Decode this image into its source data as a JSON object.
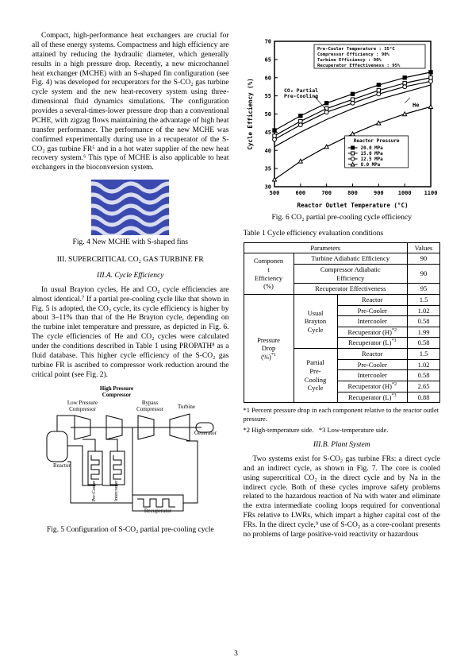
{
  "page_number": "3",
  "left_col": {
    "para1": "Compact, high-performance heat exchangers are crucial for all of these energy systems. Compactness and high efficiency are attained by reducing the hydraulic diameter, which generally results in a high pressure drop. Recently, a new microchannel heat exchanger (MCHE) with an S-shaped fin configuration (see Fig. 4) was developed for recuperators for the S-CO₂ gas turbine cycle system and the new heat-recovery system using three-dimensional fluid dynamics simulations. The configuration provides a several-times-lower pressure drop than a conventional PCHE, with zigzag flows maintaining the advantage of high heat transfer performance. The performance of the new MCHE was confirmed experimentally during use in a recuperator of the S-CO₂ gas turbine FR⁵ and in a hot water supplier of the new heat recovery system.⁶ This type of MCHE is also applicable to heat exchangers in the bioconversion system.",
    "fig4_caption": "Fig. 4 New MCHE with S-shaped fins",
    "sec3_head": "III. SUPERCRITICAL CO₂ GAS TURBINE FR",
    "sec3a_head": "III.A. Cycle Efficiency",
    "para2": "In usual Brayton cycles, He and CO₂ cycle efficiencies are almost identical.⁷ If a partial pre-cooling cycle like that shown in Fig. 5 is adopted, the CO₂ cycle, its cycle efficiency is higher by about 3–11% than that of the He Brayton cycle, depending on the turbine inlet temperature and pressure, as depicted in Fig. 6. The cycle efficiencies of He and CO₂ cycles were calculated under the conditions described in Table 1 using PROPATH⁸ as a fluid database. This higher cycle efficiency of the S-CO₂ gas turbine FR is ascribed to compressor work reduction around the critical point (see Fig. 2).",
    "fig5_caption": "Fig. 5 Configuration of S-CO₂ partial pre-cooling cycle",
    "fig5_labels": {
      "hpc": "High Pressure\nCompressor",
      "lpc": "Low Pressure\nCompressor",
      "bpc": "Bypass\nCompressor",
      "turbine": "Turbine",
      "generator": "Generator",
      "reactor": "Reactor",
      "precooler": "Pre-Cooler",
      "intercooler": "Intercooler",
      "recuperator": "Recuperator"
    }
  },
  "right_col": {
    "fig6_caption": "Fig. 6 CO₂ partial pre-cooling cycle efficiency",
    "table_caption": "Table 1 Cycle efficiency evaluation conditions",
    "footnote1": "*1 Percent pressure drop in each component relative to the reactor outlet pressure.",
    "footnote2_a": "*2 High-temperature side.",
    "footnote2_b": "*3 Low-temperature side.",
    "sec3b_head": "III.B. Plant System",
    "para3": "Two systems exist for S-CO₂ gas turbine FRs: a direct cycle and an indirect cycle, as shown in Fig. 7. The core is cooled using supercritical CO₂ in the direct cycle and by Na in the indirect cycle. Both of these cycles improve safety problems related to the hazardous reaction of Na with water and eliminate the extra intermediate cooling loops required for conventional FRs relative to LWRs, which impart a higher capital cost of the FRs. In the direct cycle,⁹ use of S-CO₂ as a core-coolant presents no problems of large positive-void reactivity or hazardous",
    "chart": {
      "type": "line",
      "xlim": [
        500,
        1100
      ],
      "ylim": [
        30,
        70
      ],
      "xticks": [
        500,
        600,
        700,
        800,
        900,
        1000,
        1100
      ],
      "yticks": [
        30,
        35,
        40,
        45,
        50,
        55,
        60,
        65,
        70
      ],
      "xlabel": "Reactor Outlet Temperature (°C)",
      "ylabel": "Cycle Efficiency (%)",
      "legend1": [
        "Pre-Cooler Temperature : 35°C",
        "Compressor Efficiency : 90%",
        "Turbine Efficiency : 90%",
        "Recuperator Effectiveness : 95%"
      ],
      "legend2_title": "Reactor Pressure",
      "legend2_items": [
        "20.0 MPa",
        "15.0 MPa",
        "12.5 MPa",
        "8.0 MPa"
      ],
      "series_he": {
        "label": "He",
        "x": [
          500,
          600,
          700,
          800,
          900,
          1000,
          1100
        ],
        "y": [
          41,
          45,
          48.5,
          51.5,
          54,
          56,
          58
        ]
      },
      "series_co2_partial_label": "CO₂ Partial\nPre-Cooling",
      "series": {
        "20": {
          "marker": "square",
          "x": [
            500,
            600,
            700,
            800,
            900,
            1000,
            1100
          ],
          "y": [
            45.5,
            49.5,
            53,
            55.5,
            58,
            60,
            61.5
          ]
        },
        "15": {
          "marker": "square-open",
          "x": [
            500,
            600,
            700,
            800,
            900,
            1000,
            1100
          ],
          "y": [
            44,
            48,
            51.5,
            54,
            56.5,
            58.5,
            60
          ]
        },
        "12.5": {
          "marker": "circle",
          "x": [
            500,
            600,
            700,
            800,
            900,
            1000,
            1100
          ],
          "y": [
            43,
            47,
            50.5,
            53,
            55.5,
            57.5,
            59
          ]
        },
        "8": {
          "marker": "triangle",
          "x": [
            500,
            600,
            700,
            800,
            900,
            1000,
            1100
          ],
          "y": [
            32,
            37,
            41,
            44.5,
            47.5,
            50,
            52
          ]
        }
      },
      "grid_color": "#cccccc",
      "axis_color": "#000000",
      "line_color": "#000000",
      "background": "#ffffff"
    },
    "table": {
      "head_param": "Parameters",
      "head_value": "Values",
      "rows": [
        {
          "g": "Component\nEfficiency\n(%)",
          "p": "Turbine Adiabatic Efficiency",
          "v": "90"
        },
        {
          "p": "Compressor Adiabatic\nEfficiency",
          "v": "90"
        },
        {
          "p": "Recuperator Effectiveness",
          "v": "95"
        },
        {
          "g": "Pressure\nDrop\n(%)*1",
          "sg": "Usual\nBrayton\nCycle",
          "p": "Reactor",
          "v": "1.5"
        },
        {
          "p": "Pre-Cooler",
          "v": "1.02"
        },
        {
          "p": "Intercooler",
          "v": "0.58"
        },
        {
          "p": "Recuperator (H)*2",
          "v": "1.99"
        },
        {
          "p": "Recuperator (L)*3",
          "v": "0.58"
        },
        {
          "sg": "Partial\nPre-\nCooling\nCycle",
          "p": "Reactor",
          "v": "1.5"
        },
        {
          "p": "Pre-Cooler",
          "v": "1.02"
        },
        {
          "p": "Intercooler",
          "v": "0.58"
        },
        {
          "p": "Recuperator (H)*2",
          "v": "2.65"
        },
        {
          "p": "Recuperator (L)*3",
          "v": "0.88"
        }
      ]
    }
  }
}
